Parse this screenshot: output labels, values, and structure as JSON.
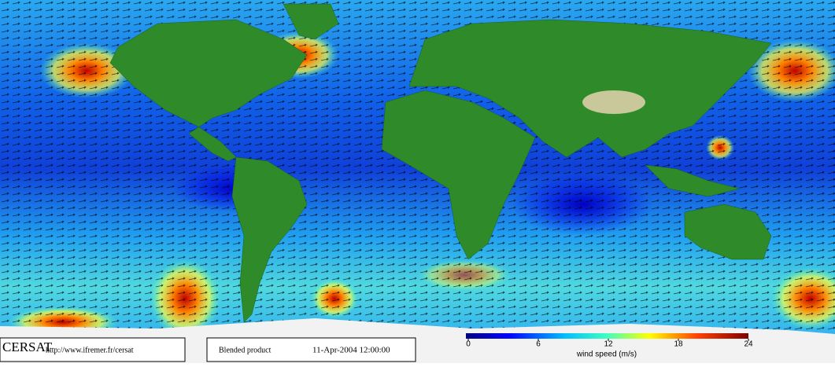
{
  "footer": {
    "brand": "CERSAT",
    "url": "http://www.ifremer.fr/cersat",
    "product": "Blended product",
    "date": "11-Apr-2004 12:00:00"
  },
  "legend": {
    "label": "wind speed (m/s)",
    "range": [
      0,
      24
    ],
    "ticks": [
      0,
      6,
      12,
      18,
      24
    ]
  }
}
